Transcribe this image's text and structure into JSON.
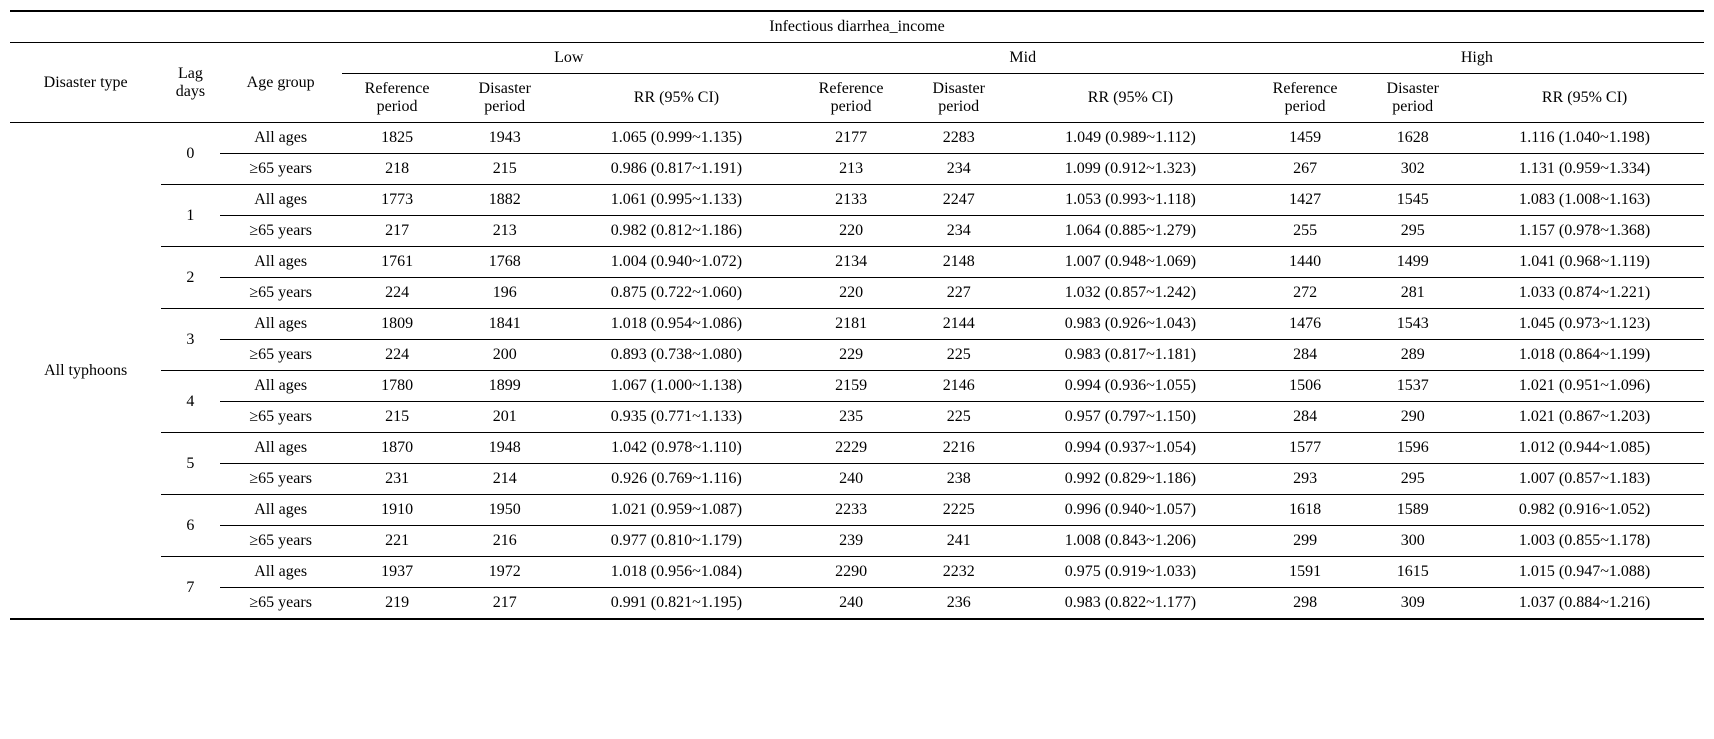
{
  "title": "Infectious diarrhea_income",
  "header": {
    "disaster_type": "Disaster type",
    "lag_days": "Lag days",
    "age_group": "Age group",
    "levels": [
      "Low",
      "Mid",
      "High"
    ],
    "ref": "Reference period",
    "disp": "Disaster period",
    "rr": "RR (95% CI)"
  },
  "disaster_type": "All typhoons",
  "age_labels": {
    "all": "All ages",
    "ge65": "≥65 years"
  },
  "lags": [
    {
      "lag": "0",
      "rows": [
        {
          "age": "all",
          "low_ref": "1825",
          "low_dis": "1943",
          "low_rr": "1.065 (0.999~1.135)",
          "mid_ref": "2177",
          "mid_dis": "2283",
          "mid_rr": "1.049 (0.989~1.112)",
          "high_ref": "1459",
          "high_dis": "1628",
          "high_rr": "1.116 (1.040~1.198)"
        },
        {
          "age": "ge65",
          "low_ref": "218",
          "low_dis": "215",
          "low_rr": "0.986 (0.817~1.191)",
          "mid_ref": "213",
          "mid_dis": "234",
          "mid_rr": "1.099 (0.912~1.323)",
          "high_ref": "267",
          "high_dis": "302",
          "high_rr": "1.131 (0.959~1.334)"
        }
      ]
    },
    {
      "lag": "1",
      "rows": [
        {
          "age": "all",
          "low_ref": "1773",
          "low_dis": "1882",
          "low_rr": "1.061 (0.995~1.133)",
          "mid_ref": "2133",
          "mid_dis": "2247",
          "mid_rr": "1.053 (0.993~1.118)",
          "high_ref": "1427",
          "high_dis": "1545",
          "high_rr": "1.083 (1.008~1.163)"
        },
        {
          "age": "ge65",
          "low_ref": "217",
          "low_dis": "213",
          "low_rr": "0.982 (0.812~1.186)",
          "mid_ref": "220",
          "mid_dis": "234",
          "mid_rr": "1.064 (0.885~1.279)",
          "high_ref": "255",
          "high_dis": "295",
          "high_rr": "1.157 (0.978~1.368)"
        }
      ]
    },
    {
      "lag": "2",
      "rows": [
        {
          "age": "all",
          "low_ref": "1761",
          "low_dis": "1768",
          "low_rr": "1.004 (0.940~1.072)",
          "mid_ref": "2134",
          "mid_dis": "2148",
          "mid_rr": "1.007 (0.948~1.069)",
          "high_ref": "1440",
          "high_dis": "1499",
          "high_rr": "1.041 (0.968~1.119)"
        },
        {
          "age": "ge65",
          "low_ref": "224",
          "low_dis": "196",
          "low_rr": "0.875 (0.722~1.060)",
          "mid_ref": "220",
          "mid_dis": "227",
          "mid_rr": "1.032 (0.857~1.242)",
          "high_ref": "272",
          "high_dis": "281",
          "high_rr": "1.033 (0.874~1.221)"
        }
      ]
    },
    {
      "lag": "3",
      "rows": [
        {
          "age": "all",
          "low_ref": "1809",
          "low_dis": "1841",
          "low_rr": "1.018 (0.954~1.086)",
          "mid_ref": "2181",
          "mid_dis": "2144",
          "mid_rr": "0.983 (0.926~1.043)",
          "high_ref": "1476",
          "high_dis": "1543",
          "high_rr": "1.045 (0.973~1.123)"
        },
        {
          "age": "ge65",
          "low_ref": "224",
          "low_dis": "200",
          "low_rr": "0.893 (0.738~1.080)",
          "mid_ref": "229",
          "mid_dis": "225",
          "mid_rr": "0.983 (0.817~1.181)",
          "high_ref": "284",
          "high_dis": "289",
          "high_rr": "1.018 (0.864~1.199)"
        }
      ]
    },
    {
      "lag": "4",
      "rows": [
        {
          "age": "all",
          "low_ref": "1780",
          "low_dis": "1899",
          "low_rr": "1.067 (1.000~1.138)",
          "mid_ref": "2159",
          "mid_dis": "2146",
          "mid_rr": "0.994 (0.936~1.055)",
          "high_ref": "1506",
          "high_dis": "1537",
          "high_rr": "1.021 (0.951~1.096)"
        },
        {
          "age": "ge65",
          "low_ref": "215",
          "low_dis": "201",
          "low_rr": "0.935 (0.771~1.133)",
          "mid_ref": "235",
          "mid_dis": "225",
          "mid_rr": "0.957 (0.797~1.150)",
          "high_ref": "284",
          "high_dis": "290",
          "high_rr": "1.021 (0.867~1.203)"
        }
      ]
    },
    {
      "lag": "5",
      "rows": [
        {
          "age": "all",
          "low_ref": "1870",
          "low_dis": "1948",
          "low_rr": "1.042 (0.978~1.110)",
          "mid_ref": "2229",
          "mid_dis": "2216",
          "mid_rr": "0.994 (0.937~1.054)",
          "high_ref": "1577",
          "high_dis": "1596",
          "high_rr": "1.012 (0.944~1.085)"
        },
        {
          "age": "ge65",
          "low_ref": "231",
          "low_dis": "214",
          "low_rr": "0.926 (0.769~1.116)",
          "mid_ref": "240",
          "mid_dis": "238",
          "mid_rr": "0.992 (0.829~1.186)",
          "high_ref": "293",
          "high_dis": "295",
          "high_rr": "1.007 (0.857~1.183)"
        }
      ]
    },
    {
      "lag": "6",
      "rows": [
        {
          "age": "all",
          "low_ref": "1910",
          "low_dis": "1950",
          "low_rr": "1.021 (0.959~1.087)",
          "mid_ref": "2233",
          "mid_dis": "2225",
          "mid_rr": "0.996 (0.940~1.057)",
          "high_ref": "1618",
          "high_dis": "1589",
          "high_rr": "0.982 (0.916~1.052)"
        },
        {
          "age": "ge65",
          "low_ref": "221",
          "low_dis": "216",
          "low_rr": "0.977 (0.810~1.179)",
          "mid_ref": "239",
          "mid_dis": "241",
          "mid_rr": "1.008 (0.843~1.206)",
          "high_ref": "299",
          "high_dis": "300",
          "high_rr": "1.003 (0.855~1.178)"
        }
      ]
    },
    {
      "lag": "7",
      "rows": [
        {
          "age": "all",
          "low_ref": "1937",
          "low_dis": "1972",
          "low_rr": "1.018 (0.956~1.084)",
          "mid_ref": "2290",
          "mid_dis": "2232",
          "mid_rr": "0.975 (0.919~1.033)",
          "high_ref": "1591",
          "high_dis": "1615",
          "high_rr": "1.015 (0.947~1.088)"
        },
        {
          "age": "ge65",
          "low_ref": "219",
          "low_dis": "217",
          "low_rr": "0.991 (0.821~1.195)",
          "mid_ref": "240",
          "mid_dis": "236",
          "mid_rr": "0.983 (0.822~1.177)",
          "high_ref": "298",
          "high_dis": "309",
          "high_rr": "1.037 (0.884~1.216)"
        }
      ]
    }
  ]
}
